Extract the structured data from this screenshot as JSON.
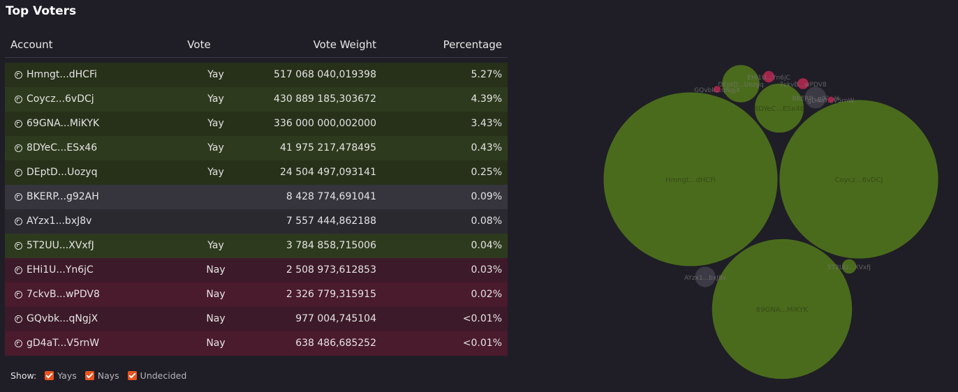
{
  "title": "Top Voters",
  "table": {
    "columns": {
      "account": "Account",
      "vote": "Vote",
      "weight": "Vote Weight",
      "percentage": "Percentage"
    },
    "rows": [
      {
        "account": "Hmngt...dHCFi",
        "vote": "Yay",
        "weight": "517 068 040,019398",
        "pct": "5.27%",
        "kind": "yay"
      },
      {
        "account": "Coycz...6vDCj",
        "vote": "Yay",
        "weight": "430 889 185,303672",
        "pct": "4.39%",
        "kind": "yay"
      },
      {
        "account": "69GNA...MiKYK",
        "vote": "Yay",
        "weight": "336 000 000,002000",
        "pct": "3.43%",
        "kind": "yay"
      },
      {
        "account": "8DYeC...ESx46",
        "vote": "Yay",
        "weight": "41 975 217,478495",
        "pct": "0.43%",
        "kind": "yay"
      },
      {
        "account": "DEptD...Uozyq",
        "vote": "Yay",
        "weight": "24 504 497,093141",
        "pct": "0.25%",
        "kind": "yay"
      },
      {
        "account": "BKERP...g92AH",
        "vote": "",
        "weight": "8 428 774,691041",
        "pct": "0.09%",
        "kind": "und"
      },
      {
        "account": "AYzx1...bxJ8v",
        "vote": "",
        "weight": "7 557 444,862188",
        "pct": "0.08%",
        "kind": "und"
      },
      {
        "account": "5T2UU...XVxfJ",
        "vote": "Yay",
        "weight": "3 784 858,715006",
        "pct": "0.04%",
        "kind": "yay"
      },
      {
        "account": "EHi1U...Yn6jC",
        "vote": "Nay",
        "weight": "2 508 973,612853",
        "pct": "0.03%",
        "kind": "nay"
      },
      {
        "account": "7ckvB...wPDV8",
        "vote": "Nay",
        "weight": "2 326 779,315915",
        "pct": "0.02%",
        "kind": "nay"
      },
      {
        "account": "GQvbk...qNgjX",
        "vote": "Nay",
        "weight": "977 004,745104",
        "pct": "<0.01%",
        "kind": "nay"
      },
      {
        "account": "gD4aT...V5rnW",
        "vote": "Nay",
        "weight": "638 486,685252",
        "pct": "<0.01%",
        "kind": "nay"
      }
    ]
  },
  "filters": {
    "label": "Show:",
    "yays": "Yays",
    "nays": "Nays",
    "undecided": "Undecided"
  },
  "bubbles": [
    {
      "label": "Hmngt...dHCFi",
      "weight": 517068040,
      "kind": "yay"
    },
    {
      "label": "Coycz...6vDCj",
      "weight": 430889185,
      "kind": "yay"
    },
    {
      "label": "69GNA...MiKYK",
      "weight": 336000000,
      "kind": "yay"
    },
    {
      "label": "8DYeC...ESx46",
      "weight": 41975217,
      "kind": "yay"
    },
    {
      "label": "DEptD...Uozyq",
      "weight": 24504497,
      "kind": "yay"
    },
    {
      "label": "BKERP...g92AH",
      "weight": 8428774,
      "kind": "und"
    },
    {
      "label": "AYzx1...bxJ8v",
      "weight": 7557444,
      "kind": "und"
    },
    {
      "label": "5T2UU...XVxfJ",
      "weight": 3784858,
      "kind": "yay"
    },
    {
      "label": "EHi1U...Yn6jC",
      "weight": 2508973,
      "kind": "nay"
    },
    {
      "label": "7ckvB...wPDV8",
      "weight": 2326779,
      "kind": "nay"
    },
    {
      "label": "GQvbk...qNgjX",
      "weight": 977004,
      "kind": "nay"
    },
    {
      "label": "gD4aT...V5rnW",
      "weight": 638486,
      "kind": "nay"
    }
  ],
  "colors": {
    "yay": "#4a6b1c",
    "nay": "#a3264a",
    "und": "#3c3b45",
    "accent": "#e8531f"
  }
}
